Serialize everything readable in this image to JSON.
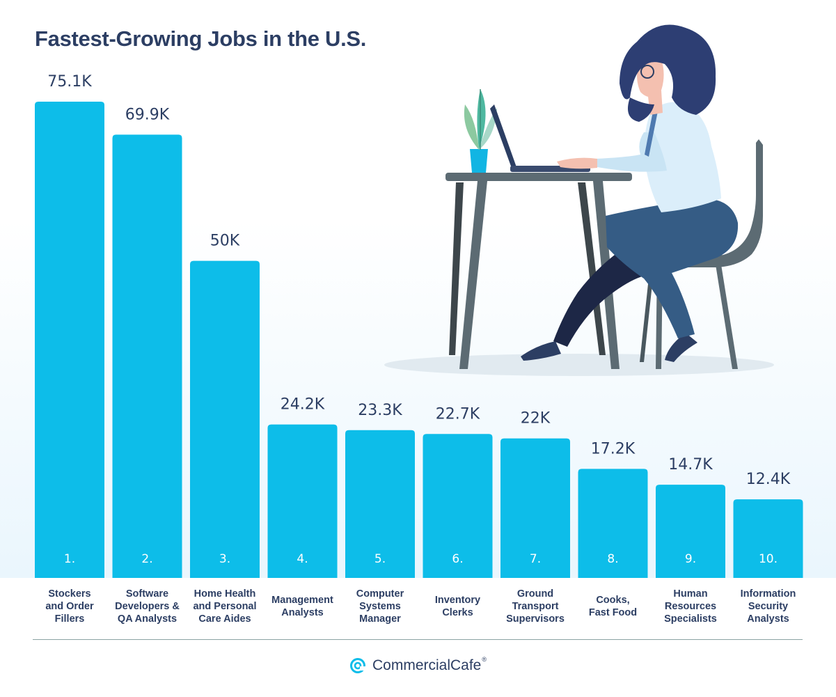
{
  "chart_data": {
    "type": "bar",
    "title": "Fastest-Growing Jobs in the U.S.",
    "categories": [
      "Stockers\nand Order\nFillers",
      "Software\nDevelopers &\nQA Analysts",
      "Home Health\nand Personal\nCare Aides",
      "Management\nAnalysts",
      "Computer\nSystems\nManager",
      "Inventory\nClerks",
      "Ground\nTransport\nSupervisors",
      "Cooks,\nFast Food",
      "Human\nResources\nSpecialists",
      "Information\nSecurity\nAnalysts"
    ],
    "ranks": [
      "1.",
      "2.",
      "3.",
      "4.",
      "5.",
      "6.",
      "7.",
      "8.",
      "9.",
      "10."
    ],
    "values": [
      75.1,
      69.9,
      50,
      24.2,
      23.3,
      22.7,
      22,
      17.2,
      14.7,
      12.4
    ],
    "value_labels": [
      "75.1K",
      "69.9K",
      "50K",
      "24.2K",
      "23.3K",
      "22.7K",
      "22K",
      "17.2K",
      "14.7K",
      "12.4K"
    ],
    "xlabel": "",
    "ylabel": "",
    "ylim": [
      0,
      75.1
    ],
    "grid": false,
    "bar_color": "#0dbde9",
    "text_color": "#2c3e63"
  },
  "brand": {
    "name": "CommercialCafe",
    "registered_mark": "®",
    "logo_icon": "commercialcafe-logo-icon"
  },
  "illustration": {
    "icon": "woman-working-at-laptop-illustration"
  }
}
